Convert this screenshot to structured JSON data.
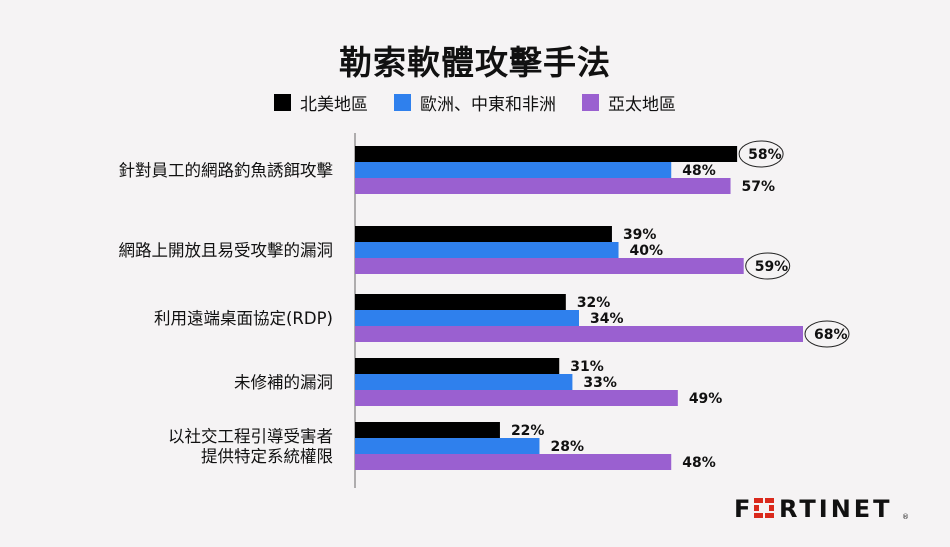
{
  "chart_data": {
    "type": "bar",
    "orientation": "horizontal",
    "title": "勒索軟體攻擊手法",
    "legend_position": "top",
    "grid": false,
    "categories": [
      [
        "針對員工的網路釣魚誘餌攻擊"
      ],
      [
        "網路上開放且易受攻擊的漏洞"
      ],
      [
        "利用遠端桌面協定(RDP)"
      ],
      [
        "未修補的漏洞"
      ],
      [
        "以社交工程引導受害者",
        "提供特定系統權限"
      ]
    ],
    "series": [
      {
        "name": "北美地區",
        "color": "#000000",
        "values": [
          58,
          39,
          32,
          31,
          22
        ]
      },
      {
        "name": "歐洲、中東和非洲",
        "color": "#2f80ed",
        "values": [
          48,
          40,
          34,
          33,
          28
        ]
      },
      {
        "name": "亞太地區",
        "color": "#9a60d0",
        "values": [
          57,
          59,
          68,
          49,
          48
        ]
      }
    ],
    "value_suffix": "%",
    "highlighted": [
      [
        0,
        0
      ],
      [
        1,
        2
      ],
      [
        2,
        2
      ]
    ],
    "xlim": [
      0,
      68
    ]
  },
  "logo": {
    "text": "FORTINET",
    "color": "#da291c"
  }
}
